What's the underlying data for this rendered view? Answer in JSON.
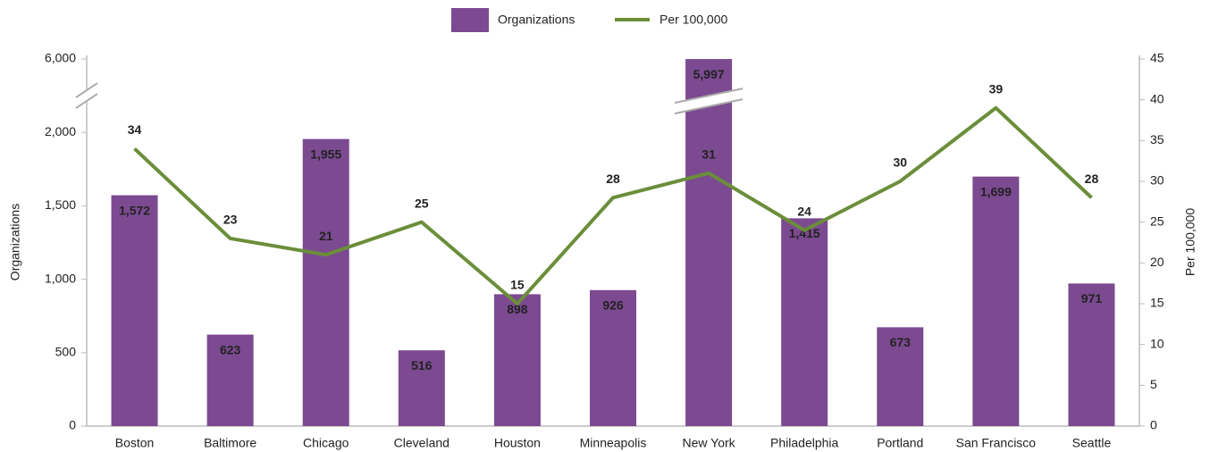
{
  "chart_data": {
    "type": "bar_line",
    "axis_break": true,
    "categories": [
      "Boston",
      "Baltimore",
      "Chicago",
      "Cleveland",
      "Houston",
      "Minneapolis",
      "New York",
      "Philadelphia",
      "Portland",
      "San Francisco",
      "Seattle"
    ],
    "series": [
      {
        "name": "Organizations",
        "type": "bar",
        "color": "#7b4a91",
        "values": [
          1572,
          623,
          1955,
          516,
          898,
          926,
          5997,
          1415,
          673,
          1699,
          971
        ],
        "value_labels": [
          "1,572",
          "623",
          "1,955",
          "516",
          "898",
          "926",
          "5,997",
          "1,415",
          "673",
          "1,699",
          "971"
        ]
      },
      {
        "name": "Per 100,000",
        "type": "line",
        "color": "#6b8e3a",
        "axis": "y2",
        "values": [
          34,
          23,
          21,
          25,
          15,
          28,
          31,
          24,
          30,
          39,
          28
        ]
      }
    ],
    "ylabel": "Organizations",
    "y2label": "Per 100,000",
    "ylim": [
      0,
      6000
    ],
    "yticks": [
      0,
      500,
      {
        "value": 1000,
        "label": "1,000"
      },
      {
        "value": 1500,
        "label": "1,500"
      },
      {
        "value": 2000,
        "label": "2,000"
      },
      {
        "value": 6000,
        "label": "6,000"
      }
    ],
    "y2lim": [
      0,
      45
    ],
    "y2ticks": [
      0,
      5,
      10,
      15,
      20,
      25,
      30,
      35,
      40,
      45
    ],
    "legend": "top"
  }
}
